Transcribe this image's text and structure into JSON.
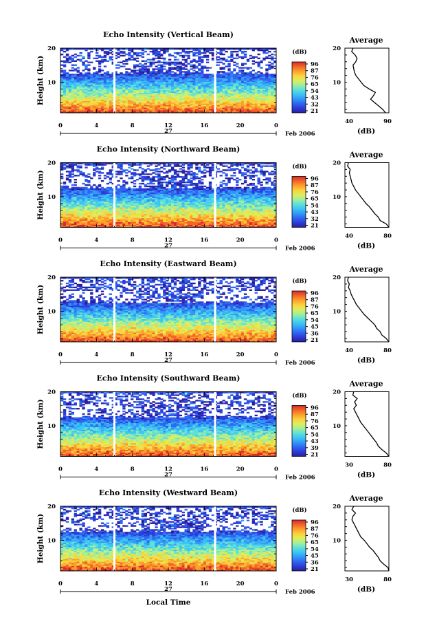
{
  "xlabel": "Local Time",
  "date_label": "Feb 2006",
  "day_label": "27",
  "x_ticks": [
    "0",
    "4",
    "8",
    "12",
    "16",
    "20",
    "0"
  ],
  "y_label": "Height (km)",
  "y_ticks": [
    "20",
    "10"
  ],
  "colorbar_unit": "(dB)",
  "avg_title": "Average",
  "avg_xlabel": "(dB)",
  "avg_y_ticks": [
    "20",
    "10"
  ],
  "colormap": [
    "#2a1f9a",
    "#2d3cd8",
    "#2f66f0",
    "#3398f8",
    "#3cc4f4",
    "#5fe0d8",
    "#a2ee9a",
    "#dcee5e",
    "#fcd23c",
    "#fca02c",
    "#f2642a",
    "#d8282a"
  ],
  "chart_data": [
    {
      "type": "heatmap",
      "title": "Echo Intensity (Vertical Beam)",
      "xlabel": "Local Time",
      "ylabel": "Height (km)",
      "xlim": [
        0,
        24
      ],
      "ylim": [
        1,
        20
      ],
      "color_scale_labels": [
        "96",
        "87",
        "76",
        "65",
        "54",
        "43",
        "32",
        "21"
      ],
      "data_gaps_hours": [
        6.0,
        17.2
      ],
      "average_profile": {
        "title": "Average",
        "xlabel": "(dB)",
        "xticks": [
          "40",
          "90"
        ],
        "xlim": [
          30,
          95
        ],
        "height_km": [
          1,
          2,
          3,
          4,
          5,
          6,
          7,
          8,
          9,
          10,
          11,
          12,
          13,
          14,
          15,
          16,
          17,
          18,
          19,
          20
        ],
        "dB": [
          90,
          86,
          80,
          74,
          68,
          72,
          75,
          66,
          58,
          54,
          50,
          46,
          44,
          43,
          42,
          46,
          48,
          45,
          40,
          42
        ]
      }
    },
    {
      "type": "heatmap",
      "title": "Echo Intensity (Northward Beam)",
      "xlabel": "Local Time",
      "ylabel": "Height (km)",
      "xlim": [
        0,
        24
      ],
      "ylim": [
        1,
        20
      ],
      "color_scale_labels": [
        "96",
        "87",
        "76",
        "65",
        "54",
        "43",
        "32",
        "21"
      ],
      "data_gaps_hours": [
        6.0,
        17.2
      ],
      "average_profile": {
        "title": "Average",
        "xlabel": "(dB)",
        "xticks": [
          "40",
          "80"
        ],
        "xlim": [
          30,
          80
        ],
        "height_km": [
          1,
          2,
          3,
          4,
          5,
          6,
          7,
          8,
          9,
          10,
          11,
          12,
          13,
          14,
          15,
          16,
          17,
          18,
          19,
          20
        ],
        "dB": [
          80,
          77,
          70,
          68,
          64,
          61,
          58,
          54,
          51,
          48,
          45,
          42,
          40,
          38,
          37,
          36,
          35,
          36,
          33,
          34
        ]
      }
    },
    {
      "type": "heatmap",
      "title": "Echo Intensity (Eastward Beam)",
      "xlabel": "Local Time",
      "ylabel": "Height (km)",
      "xlim": [
        0,
        24
      ],
      "ylim": [
        1,
        20
      ],
      "color_scale_labels": [
        "96",
        "87",
        "76",
        "65",
        "54",
        "45",
        "36",
        "21"
      ],
      "data_gaps_hours": [
        6.0,
        17.2
      ],
      "average_profile": {
        "title": "Average",
        "xlabel": "(dB)",
        "xticks": [
          "40",
          "80"
        ],
        "xlim": [
          30,
          80
        ],
        "height_km": [
          1,
          2,
          3,
          4,
          5,
          6,
          7,
          8,
          9,
          10,
          11,
          12,
          13,
          14,
          15,
          16,
          17,
          18,
          19,
          20
        ],
        "dB": [
          80,
          77,
          72,
          70,
          66,
          64,
          60,
          56,
          52,
          49,
          46,
          43,
          41,
          39,
          37,
          36,
          34,
          35,
          33,
          34
        ]
      }
    },
    {
      "type": "heatmap",
      "title": "Echo Intensity (Southward Beam)",
      "xlabel": "Local Time",
      "ylabel": "Height (km)",
      "xlim": [
        0,
        24
      ],
      "ylim": [
        1,
        20
      ],
      "color_scale_labels": [
        "96",
        "87",
        "76",
        "65",
        "54",
        "43",
        "39",
        "21"
      ],
      "data_gaps_hours": [
        6.0,
        17.2
      ],
      "average_profile": {
        "title": "Average",
        "xlabel": "(dB)",
        "xticks": [
          "30",
          "80"
        ],
        "xlim": [
          30,
          80
        ],
        "height_km": [
          1,
          2,
          3,
          4,
          5,
          6,
          7,
          8,
          9,
          10,
          11,
          12,
          13,
          14,
          15,
          16,
          17,
          18,
          19,
          20
        ],
        "dB": [
          80,
          77,
          72,
          68,
          66,
          63,
          60,
          57,
          54,
          51,
          48,
          46,
          44,
          42,
          40,
          43,
          41,
          44,
          39,
          40
        ]
      }
    },
    {
      "type": "heatmap",
      "title": "Echo Intensity (Westward Beam)",
      "xlabel": "Local Time",
      "ylabel": "Height (km)",
      "xlim": [
        0,
        24
      ],
      "ylim": [
        1,
        20
      ],
      "color_scale_labels": [
        "96",
        "87",
        "76",
        "65",
        "54",
        "45",
        "36",
        "21"
      ],
      "data_gaps_hours": [
        6.0,
        17.2
      ],
      "average_profile": {
        "title": "Average",
        "xlabel": "(dB)",
        "xticks": [
          "30",
          "80"
        ],
        "xlim": [
          30,
          80
        ],
        "height_km": [
          1,
          2,
          3,
          4,
          5,
          6,
          7,
          8,
          9,
          10,
          11,
          12,
          13,
          14,
          15,
          16,
          17,
          18,
          19,
          20
        ],
        "dB": [
          80,
          79,
          74,
          70,
          68,
          65,
          62,
          58,
          55,
          52,
          48,
          46,
          44,
          42,
          40,
          38,
          39,
          42,
          38,
          40
        ]
      }
    }
  ]
}
